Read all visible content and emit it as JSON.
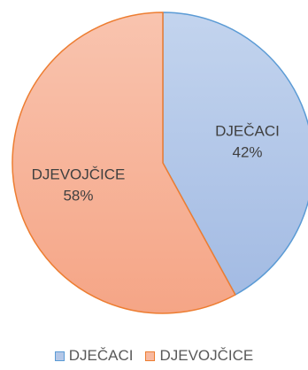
{
  "chart_data": {
    "type": "pie",
    "slices": [
      {
        "label": "DJEČACI",
        "value": 42,
        "value_label": "42%",
        "fill": "#B4C7E7",
        "stroke": "#5B9BD5"
      },
      {
        "label": "DJEVOJČICE",
        "value": 58,
        "value_label": "58%",
        "fill": "#F8B9A0",
        "stroke": "#ED7D31"
      }
    ],
    "legend": {
      "position": "bottom",
      "entries": [
        "DJEČACI",
        "DJEVOJČICE"
      ]
    }
  }
}
